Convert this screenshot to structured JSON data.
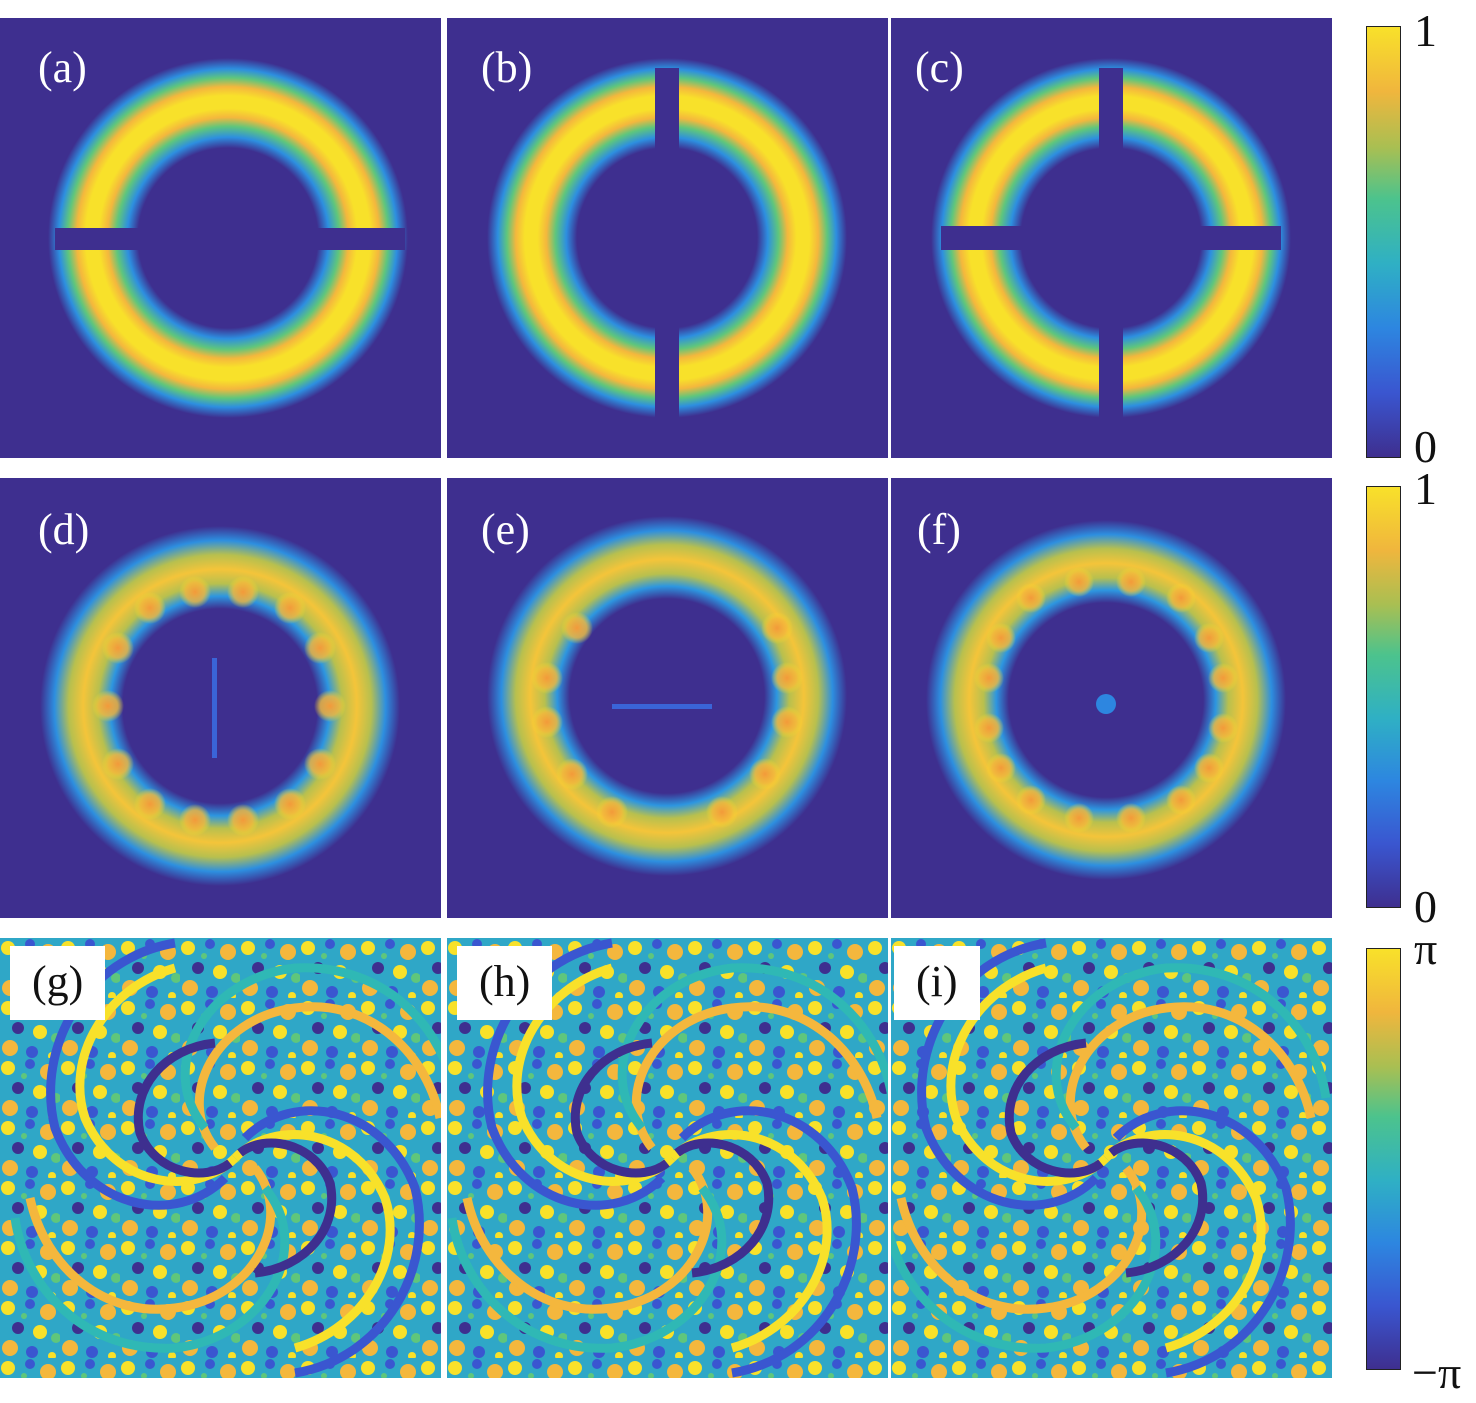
{
  "panels": [
    {
      "id": "a",
      "label": "(a)"
    },
    {
      "id": "b",
      "label": "(b)"
    },
    {
      "id": "c",
      "label": "(c)"
    },
    {
      "id": "d",
      "label": "(d)"
    },
    {
      "id": "e",
      "label": "(e)"
    },
    {
      "id": "f",
      "label": "(f)"
    },
    {
      "id": "g",
      "label": "(g)"
    },
    {
      "id": "h",
      "label": "(h)"
    },
    {
      "id": "i",
      "label": "(i)"
    }
  ],
  "colorbars": [
    {
      "id": "density-top",
      "max_label": "1",
      "min_label": "0"
    },
    {
      "id": "density-middle",
      "max_label": "1",
      "min_label": "0"
    },
    {
      "id": "phase",
      "max_label": "π",
      "min_label": "−π"
    }
  ],
  "colormap": [
    "#3e2f8f",
    "#3a64d8",
    "#2d96e0",
    "#2fb8b5",
    "#5fc67c",
    "#b8c04e",
    "#f4b73d",
    "#f8e12a"
  ],
  "background_color": "#3e2f8f"
}
